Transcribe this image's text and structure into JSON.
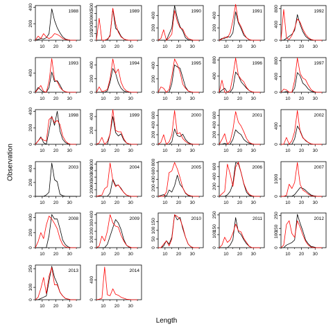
{
  "chart_data": {
    "type": "line",
    "xlabel": "Length",
    "ylabel": "Observation",
    "x": [
      5,
      7,
      9,
      11,
      13,
      15,
      17,
      19,
      21,
      23,
      25,
      27,
      29,
      31,
      33,
      35
    ],
    "xlim": [
      5,
      38
    ],
    "x_ticks": [
      10,
      20,
      30
    ],
    "series_colors": [
      "#000000",
      "#ff0000"
    ],
    "panels": [
      {
        "year": "1988",
        "yticks": [
          0,
          200,
          400
        ],
        "ylim": [
          0,
          420
        ],
        "black": [
          0,
          10,
          20,
          15,
          30,
          80,
          380,
          240,
          150,
          90,
          40,
          15,
          5,
          0,
          0,
          0
        ],
        "red": [
          0,
          50,
          20,
          80,
          40,
          20,
          40,
          80,
          70,
          50,
          20,
          10,
          5,
          0,
          0,
          0
        ]
      },
      {
        "year": "1989",
        "yticks": [
          0,
          100,
          200,
          300,
          400,
          500
        ],
        "ylim": [
          0,
          520
        ],
        "black": [
          0,
          0,
          0,
          0,
          0,
          80,
          470,
          180,
          140,
          60,
          20,
          5,
          0,
          0,
          0,
          0
        ],
        "red": [
          0,
          330,
          0,
          0,
          20,
          60,
          480,
          250,
          120,
          50,
          20,
          5,
          0,
          0,
          0,
          0
        ]
      },
      {
        "year": "1990",
        "yticks": [
          0,
          200,
          400
        ],
        "ylim": [
          0,
          560
        ],
        "black": [
          0,
          0,
          0,
          0,
          100,
          200,
          560,
          360,
          220,
          150,
          40,
          10,
          0,
          0,
          0,
          0
        ],
        "red": [
          0,
          30,
          170,
          0,
          40,
          100,
          480,
          300,
          200,
          180,
          80,
          30,
          10,
          0,
          0,
          0
        ]
      },
      {
        "year": "1991",
        "yticks": [
          0,
          200,
          400
        ],
        "ylim": [
          0,
          560
        ],
        "black": [
          0,
          30,
          30,
          60,
          50,
          120,
          460,
          280,
          190,
          80,
          40,
          10,
          0,
          0,
          0,
          0
        ],
        "red": [
          0,
          20,
          50,
          40,
          120,
          320,
          580,
          300,
          220,
          110,
          40,
          10,
          0,
          0,
          0,
          0
        ]
      },
      {
        "year": "1992",
        "yticks": [
          0,
          400,
          800
        ],
        "ylim": [
          0,
          880
        ],
        "black": [
          0,
          0,
          50,
          100,
          150,
          250,
          650,
          400,
          220,
          100,
          40,
          10,
          0,
          0,
          0,
          0
        ],
        "red": [
          0,
          780,
          60,
          20,
          120,
          300,
          540,
          460,
          280,
          150,
          70,
          20,
          5,
          0,
          0,
          0
        ]
      },
      {
        "year": "1993",
        "yticks": [
          0,
          400
        ],
        "ylim": [
          0,
          720
        ],
        "black": [
          0,
          100,
          50,
          0,
          0,
          100,
          420,
          220,
          240,
          150,
          40,
          10,
          0,
          0,
          0,
          0
        ],
        "red": [
          0,
          70,
          140,
          20,
          0,
          220,
          700,
          260,
          220,
          100,
          40,
          10,
          0,
          0,
          0,
          0
        ]
      },
      {
        "year": "1994",
        "yticks": [
          0,
          200,
          400
        ],
        "ylim": [
          0,
          510
        ],
        "black": [
          0,
          0,
          0,
          0,
          20,
          150,
          350,
          280,
          140,
          60,
          20,
          5,
          0,
          0,
          0,
          0
        ],
        "red": [
          0,
          80,
          10,
          20,
          40,
          200,
          490,
          280,
          340,
          150,
          60,
          20,
          5,
          0,
          0,
          0
        ]
      },
      {
        "year": "1995",
        "yticks": [
          0,
          200,
          400
        ],
        "ylim": [
          0,
          520
        ],
        "black": [
          0,
          0,
          0,
          0,
          0,
          130,
          410,
          380,
          360,
          220,
          80,
          20,
          5,
          0,
          0,
          0
        ],
        "red": [
          0,
          80,
          60,
          0,
          40,
          240,
          500,
          420,
          300,
          120,
          60,
          20,
          5,
          0,
          0,
          0
        ]
      },
      {
        "year": "1996",
        "yticks": [
          0,
          400,
          800
        ],
        "ylim": [
          0,
          860
        ],
        "black": [
          0,
          50,
          100,
          0,
          0,
          100,
          500,
          420,
          260,
          180,
          100,
          40,
          10,
          0,
          0,
          0
        ],
        "red": [
          0,
          300,
          0,
          0,
          50,
          400,
          850,
          420,
          320,
          260,
          120,
          40,
          10,
          0,
          0,
          0
        ]
      },
      {
        "year": "1997",
        "yticks": [
          0,
          400,
          800
        ],
        "ylim": [
          0,
          880
        ],
        "black": [
          0,
          0,
          20,
          0,
          0,
          100,
          500,
          420,
          230,
          170,
          80,
          30,
          10,
          0,
          0,
          0
        ],
        "red": [
          0,
          80,
          60,
          0,
          0,
          300,
          870,
          480,
          360,
          320,
          180,
          70,
          20,
          0,
          0,
          0
        ]
      },
      {
        "year": "1998",
        "yticks": [
          0,
          200,
          400
        ],
        "ylim": [
          0,
          420
        ],
        "black": [
          0,
          40,
          90,
          20,
          0,
          160,
          340,
          230,
          400,
          160,
          60,
          20,
          5,
          0,
          0,
          0
        ],
        "red": [
          0,
          40,
          80,
          50,
          40,
          300,
          330,
          260,
          290,
          240,
          100,
          40,
          10,
          0,
          0,
          0
        ]
      },
      {
        "year": "1999",
        "yticks": [
          0,
          200,
          400
        ],
        "ylim": [
          0,
          500
        ],
        "black": [
          0,
          0,
          0,
          0,
          0,
          150,
          400,
          170,
          120,
          150,
          60,
          20,
          5,
          0,
          0,
          0
        ],
        "red": [
          0,
          20,
          100,
          0,
          40,
          150,
          500,
          200,
          180,
          180,
          80,
          20,
          5,
          0,
          0,
          0
        ]
      },
      {
        "year": "2000",
        "yticks": [
          0,
          200,
          400,
          600
        ],
        "ylim": [
          0,
          720
        ],
        "black": [
          0,
          0,
          0,
          0,
          0,
          50,
          320,
          180,
          160,
          210,
          100,
          40,
          10,
          0,
          0,
          0
        ],
        "red": [
          0,
          40,
          200,
          0,
          50,
          200,
          700,
          220,
          240,
          120,
          60,
          20,
          5,
          0,
          0,
          0
        ]
      },
      {
        "year": "2001",
        "yticks": [
          0,
          200,
          400,
          600
        ],
        "ylim": [
          0,
          720
        ],
        "black": [
          0,
          0,
          20,
          0,
          0,
          100,
          300,
          240,
          200,
          100,
          50,
          20,
          5,
          0,
          0,
          0
        ],
        "red": [
          0,
          100,
          220,
          0,
          60,
          300,
          680,
          460,
          380,
          260,
          120,
          40,
          10,
          0,
          0,
          0
        ]
      },
      {
        "year": "2002",
        "yticks": [
          0,
          400
        ],
        "ylim": [
          0,
          760
        ],
        "black": [
          0,
          0,
          0,
          0,
          0,
          120,
          400,
          300,
          150,
          80,
          40,
          10,
          0,
          0,
          0,
          0
        ],
        "red": [
          0,
          0,
          150,
          0,
          80,
          280,
          740,
          280,
          140,
          90,
          40,
          10,
          0,
          0,
          0,
          0
        ]
      },
      {
        "year": "2003",
        "yticks": [
          0,
          200,
          400
        ],
        "ylim": [
          0,
          500
        ],
        "black": [
          0,
          0,
          0,
          0,
          20,
          60,
          480,
          240,
          210,
          30,
          10,
          0,
          0,
          0,
          0,
          0
        ],
        "red": []
      },
      {
        "year": "2004",
        "yticks": [
          0,
          200,
          400,
          600,
          800,
          1000
        ],
        "ylim": [
          0,
          1080
        ],
        "black": [
          0,
          0,
          0,
          0,
          0,
          100,
          530,
          340,
          350,
          250,
          120,
          40,
          10,
          0,
          0,
          0
        ],
        "red": [
          0,
          20,
          40,
          240,
          300,
          1040,
          500,
          300,
          360,
          230,
          120,
          40,
          10,
          0,
          0,
          0
        ]
      },
      {
        "year": "2005",
        "yticks": [
          0,
          200,
          400,
          600,
          800
        ],
        "ylim": [
          0,
          820
        ],
        "black": [
          0,
          20,
          40,
          0,
          150,
          100,
          250,
          500,
          280,
          200,
          70,
          20,
          5,
          0,
          0,
          0
        ],
        "red": [
          0,
          0,
          0,
          100,
          560,
          600,
          800,
          650,
          440,
          200,
          80,
          30,
          10,
          0,
          0,
          0
        ]
      },
      {
        "year": "2006",
        "yticks": [
          0,
          200,
          400,
          600
        ],
        "ylim": [
          0,
          700
        ],
        "black": [
          0,
          0,
          0,
          30,
          100,
          250,
          680,
          660,
          480,
          250,
          80,
          20,
          5,
          0,
          0,
          0
        ],
        "red": [
          0,
          50,
          100,
          650,
          450,
          200,
          590,
          690,
          480,
          260,
          120,
          40,
          10,
          0,
          0,
          0
        ]
      },
      {
        "year": "2007",
        "yticks": [
          0,
          1000
        ],
        "ylim": [
          0,
          2000
        ],
        "black": [
          0,
          0,
          0,
          0,
          0,
          100,
          300,
          500,
          460,
          350,
          200,
          80,
          30,
          10,
          0,
          0
        ],
        "red": [
          0,
          0,
          60,
          700,
          450,
          800,
          1950,
          700,
          360,
          260,
          120,
          40,
          10,
          0,
          0,
          0
        ]
      },
      {
        "year": "2008",
        "yticks": [
          0,
          200,
          400
        ],
        "ylim": [
          0,
          460
        ],
        "black": [
          0,
          0,
          0,
          0,
          0,
          160,
          440,
          380,
          380,
          250,
          100,
          40,
          10,
          0,
          0,
          0
        ],
        "red": [
          0,
          80,
          200,
          120,
          300,
          420,
          380,
          320,
          250,
          120,
          40,
          10,
          0,
          0,
          0,
          0
        ]
      },
      {
        "year": "2009",
        "yticks": [
          0,
          100,
          200,
          300,
          400
        ],
        "ylim": [
          0,
          420
        ],
        "black": [
          0,
          0,
          0,
          0,
          40,
          140,
          240,
          340,
          300,
          220,
          100,
          30,
          5,
          0,
          0,
          0
        ],
        "red": [
          0,
          20,
          140,
          80,
          200,
          400,
          300,
          260,
          250,
          150,
          80,
          30,
          10,
          0,
          0,
          0
        ]
      },
      {
        "year": "2010",
        "yticks": [
          0,
          50,
          100,
          150
        ],
        "ylim": [
          0,
          200
        ],
        "black": [
          0,
          0,
          10,
          40,
          20,
          60,
          190,
          160,
          175,
          110,
          60,
          20,
          5,
          0,
          0,
          0
        ],
        "red": [
          0,
          0,
          20,
          40,
          10,
          50,
          190,
          180,
          165,
          120,
          60,
          20,
          5,
          0,
          0,
          0
        ]
      },
      {
        "year": "2011",
        "yticks": [
          0,
          100,
          150,
          250
        ],
        "ylim": [
          0,
          265
        ],
        "black": [
          0,
          0,
          0,
          0,
          20,
          60,
          230,
          120,
          100,
          60,
          30,
          10,
          0,
          0,
          0,
          0
        ],
        "red": [
          0,
          20,
          80,
          40,
          60,
          110,
          180,
          130,
          120,
          70,
          40,
          10,
          0,
          0,
          0,
          0
        ]
      },
      {
        "year": "2012",
        "yticks": [
          0,
          100,
          150,
          250
        ],
        "ylim": [
          0,
          270
        ],
        "black": [
          0,
          0,
          20,
          30,
          40,
          60,
          260,
          190,
          130,
          60,
          30,
          10,
          5,
          0,
          0,
          0
        ],
        "red": [
          0,
          20,
          180,
          210,
          110,
          80,
          210,
          160,
          100,
          50,
          20,
          5,
          0,
          0,
          0,
          0
        ]
      },
      {
        "year": "2013",
        "yticks": [
          0,
          100,
          250
        ],
        "ylim": [
          0,
          280
        ],
        "black": [
          0,
          0,
          10,
          20,
          30,
          150,
          270,
          180,
          130,
          60,
          30,
          10,
          5,
          0,
          0,
          0
        ],
        "red": [
          0,
          20,
          90,
          180,
          50,
          190,
          260,
          120,
          120,
          60,
          30,
          10,
          5,
          0,
          0,
          0
        ]
      },
      {
        "year": "2014",
        "yticks": [
          0,
          400
        ],
        "ylim": [
          0,
          700
        ],
        "black": [],
        "red": [
          0,
          10,
          30,
          660,
          100,
          80,
          220,
          110,
          90,
          50,
          30,
          10,
          5,
          0,
          0,
          0
        ]
      }
    ]
  }
}
